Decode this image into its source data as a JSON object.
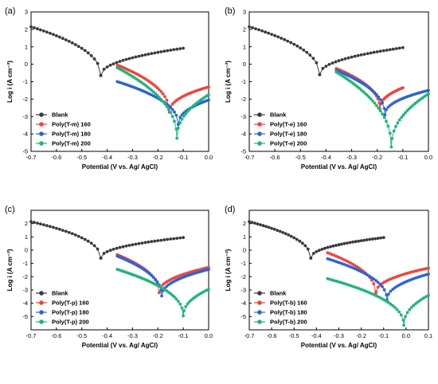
{
  "chart_data": [
    {
      "type": "line",
      "panel_label": "(a)",
      "xlabel": "Potential (V vs. Ag/ AgCl)",
      "ylabel": "Log i (A cm⁻²)",
      "xlim": [
        -0.7,
        0.0
      ],
      "ylim": [
        -5,
        3
      ],
      "xticks": [
        "-0.7",
        "-0.6",
        "-0.5",
        "-0.4",
        "-0.3",
        "-0.2",
        "-0.1",
        "0.0"
      ],
      "yticks": [
        "-5",
        "-4",
        "-3",
        "-2",
        "-1",
        "0",
        "1",
        "2",
        "3"
      ],
      "legend_position": "bottom-left",
      "series": [
        {
          "name": "Blank",
          "color": "#3a3a3a",
          "range": [
            -0.7,
            -0.1
          ],
          "ecorr": -0.425,
          "icorr": -0.65,
          "anchor_left": [
            -0.7,
            2.15
          ],
          "anchor_right": [
            -0.1,
            0.92
          ]
        },
        {
          "name": "Poly(T-m) 160",
          "color": "#f0443c",
          "range": [
            -0.36,
            0.0
          ],
          "ecorr": -0.155,
          "icorr": -2.75,
          "anchor_left": [
            -0.36,
            -0.05
          ],
          "anchor_right": [
            0.0,
            -1.3
          ]
        },
        {
          "name": "Poly(T-m) 180",
          "color": "#2a63d8",
          "range": [
            -0.36,
            0.0
          ],
          "ecorr": -0.12,
          "icorr": -3.45,
          "anchor_left": [
            -0.36,
            -1.0
          ],
          "anchor_right": [
            0.0,
            -2.05
          ]
        },
        {
          "name": "Poly(T-m) 200",
          "color": "#1fb57a",
          "range": [
            -0.36,
            0.0
          ],
          "ecorr": -0.125,
          "icorr": -4.25,
          "anchor_left": [
            -0.36,
            -0.2
          ],
          "anchor_right": [
            0.0,
            -1.75
          ]
        }
      ]
    },
    {
      "type": "line",
      "panel_label": "(b)",
      "xlabel": "Potential (V vs. Ag/ AgCl)",
      "ylabel": "Log i (A cm⁻²)",
      "xlim": [
        -0.7,
        0.0
      ],
      "ylim": [
        -5,
        3
      ],
      "xticks": [
        "-0.7",
        "-0.6",
        "-0.5",
        "-0.4",
        "-0.3",
        "-0.2",
        "-0.1",
        "0.0"
      ],
      "yticks": [
        "-5",
        "-4",
        "-3",
        "-2",
        "-1",
        "0",
        "1",
        "2",
        "3"
      ],
      "legend_position": "bottom-left",
      "series": [
        {
          "name": "Blank",
          "color": "#3a3a3a",
          "range": [
            -0.7,
            -0.1
          ],
          "ecorr": -0.425,
          "icorr": -0.6,
          "anchor_left": [
            -0.7,
            2.15
          ],
          "anchor_right": [
            -0.1,
            0.95
          ]
        },
        {
          "name": "Poly(T-e) 160",
          "color": "#f0443c",
          "range": [
            -0.36,
            -0.1
          ],
          "ecorr": -0.19,
          "icorr": -2.55,
          "anchor_left": [
            -0.36,
            -0.25
          ],
          "anchor_right": [
            -0.1,
            -1.35
          ]
        },
        {
          "name": "Poly(T-e) 180",
          "color": "#2a63d8",
          "range": [
            -0.36,
            0.0
          ],
          "ecorr": -0.17,
          "icorr": -2.9,
          "anchor_left": [
            -0.36,
            -0.35
          ],
          "anchor_right": [
            0.0,
            -1.5
          ]
        },
        {
          "name": "Poly(T-e) 200",
          "color": "#1fb57a",
          "range": [
            -0.36,
            0.0
          ],
          "ecorr": -0.145,
          "icorr": -4.75,
          "anchor_left": [
            -0.36,
            -0.45
          ],
          "anchor_right": [
            0.0,
            -1.7
          ]
        }
      ]
    },
    {
      "type": "line",
      "panel_label": "(c)",
      "xlabel": "Potential (V vs. Ag/ AgCl)",
      "ylabel": "Log i (A cm⁻²)",
      "xlim": [
        -0.7,
        0.0
      ],
      "ylim": [
        -6,
        3
      ],
      "xticks": [
        "-0.7",
        "-0.6",
        "-0.5",
        "-0.4",
        "-0.3",
        "-0.2",
        "-0.1",
        "0.0"
      ],
      "yticks": [
        "-5",
        "-4",
        "-3",
        "-2",
        "-1",
        "0",
        "1",
        "2"
      ],
      "legend_position": "bottom-left",
      "series": [
        {
          "name": "Blank",
          "color": "#3a3a3a",
          "range": [
            -0.7,
            -0.1
          ],
          "ecorr": -0.425,
          "icorr": -0.6,
          "anchor_left": [
            -0.7,
            2.15
          ],
          "anchor_right": [
            -0.1,
            0.95
          ]
        },
        {
          "name": "Poly(T-p) 160",
          "color": "#f0443c",
          "range": [
            -0.36,
            0.0
          ],
          "ecorr": -0.195,
          "icorr": -3.2,
          "anchor_left": [
            -0.36,
            -0.35
          ],
          "anchor_right": [
            0.0,
            -1.3
          ]
        },
        {
          "name": "Poly(T-p) 180",
          "color": "#2a63d8",
          "range": [
            -0.36,
            0.0
          ],
          "ecorr": -0.185,
          "icorr": -3.45,
          "anchor_left": [
            -0.36,
            -0.45
          ],
          "anchor_right": [
            0.0,
            -1.45
          ]
        },
        {
          "name": "Poly(T-p) 200",
          "color": "#1fb57a",
          "range": [
            -0.36,
            0.0
          ],
          "ecorr": -0.1,
          "icorr": -4.95,
          "anchor_left": [
            -0.36,
            -1.45
          ],
          "anchor_right": [
            0.0,
            -2.95
          ]
        }
      ]
    },
    {
      "type": "line",
      "panel_label": "(d)",
      "xlabel": "Potential (V vs. Ag/ AgCl)",
      "ylabel": "Log i (A cm⁻²)",
      "xlim": [
        -0.7,
        0.1
      ],
      "ylim": [
        -6,
        3
      ],
      "xticks": [
        "-0.7",
        "-0.6",
        "-0.5",
        "-0.4",
        "-0.3",
        "-0.2",
        "-0.1",
        "0.0",
        "0.1"
      ],
      "yticks": [
        "-5",
        "-4",
        "-3",
        "-2",
        "-1",
        "0",
        "1",
        "2"
      ],
      "legend_position": "bottom-left",
      "series": [
        {
          "name": "Blank",
          "color": "#3a3a3a",
          "range": [
            -0.7,
            -0.1
          ],
          "ecorr": -0.425,
          "icorr": -0.6,
          "anchor_left": [
            -0.7,
            2.15
          ],
          "anchor_right": [
            -0.1,
            0.95
          ]
        },
        {
          "name": "Poly(T-b) 160",
          "color": "#f0443c",
          "range": [
            -0.35,
            0.1
          ],
          "ecorr": -0.135,
          "icorr": -3.25,
          "anchor_left": [
            -0.35,
            -0.2
          ],
          "anchor_right": [
            0.1,
            -1.35
          ]
        },
        {
          "name": "Poly(T-b) 180",
          "color": "#2a63d8",
          "range": [
            -0.35,
            0.1
          ],
          "ecorr": -0.085,
          "icorr": -3.75,
          "anchor_left": [
            -0.35,
            -0.65
          ],
          "anchor_right": [
            0.1,
            -1.8
          ]
        },
        {
          "name": "Poly(T-b) 200",
          "color": "#1fb57a",
          "range": [
            -0.35,
            0.1
          ],
          "ecorr": -0.01,
          "icorr": -5.65,
          "anchor_left": [
            -0.35,
            -2.15
          ],
          "anchor_right": [
            0.1,
            -3.4
          ]
        }
      ]
    }
  ]
}
